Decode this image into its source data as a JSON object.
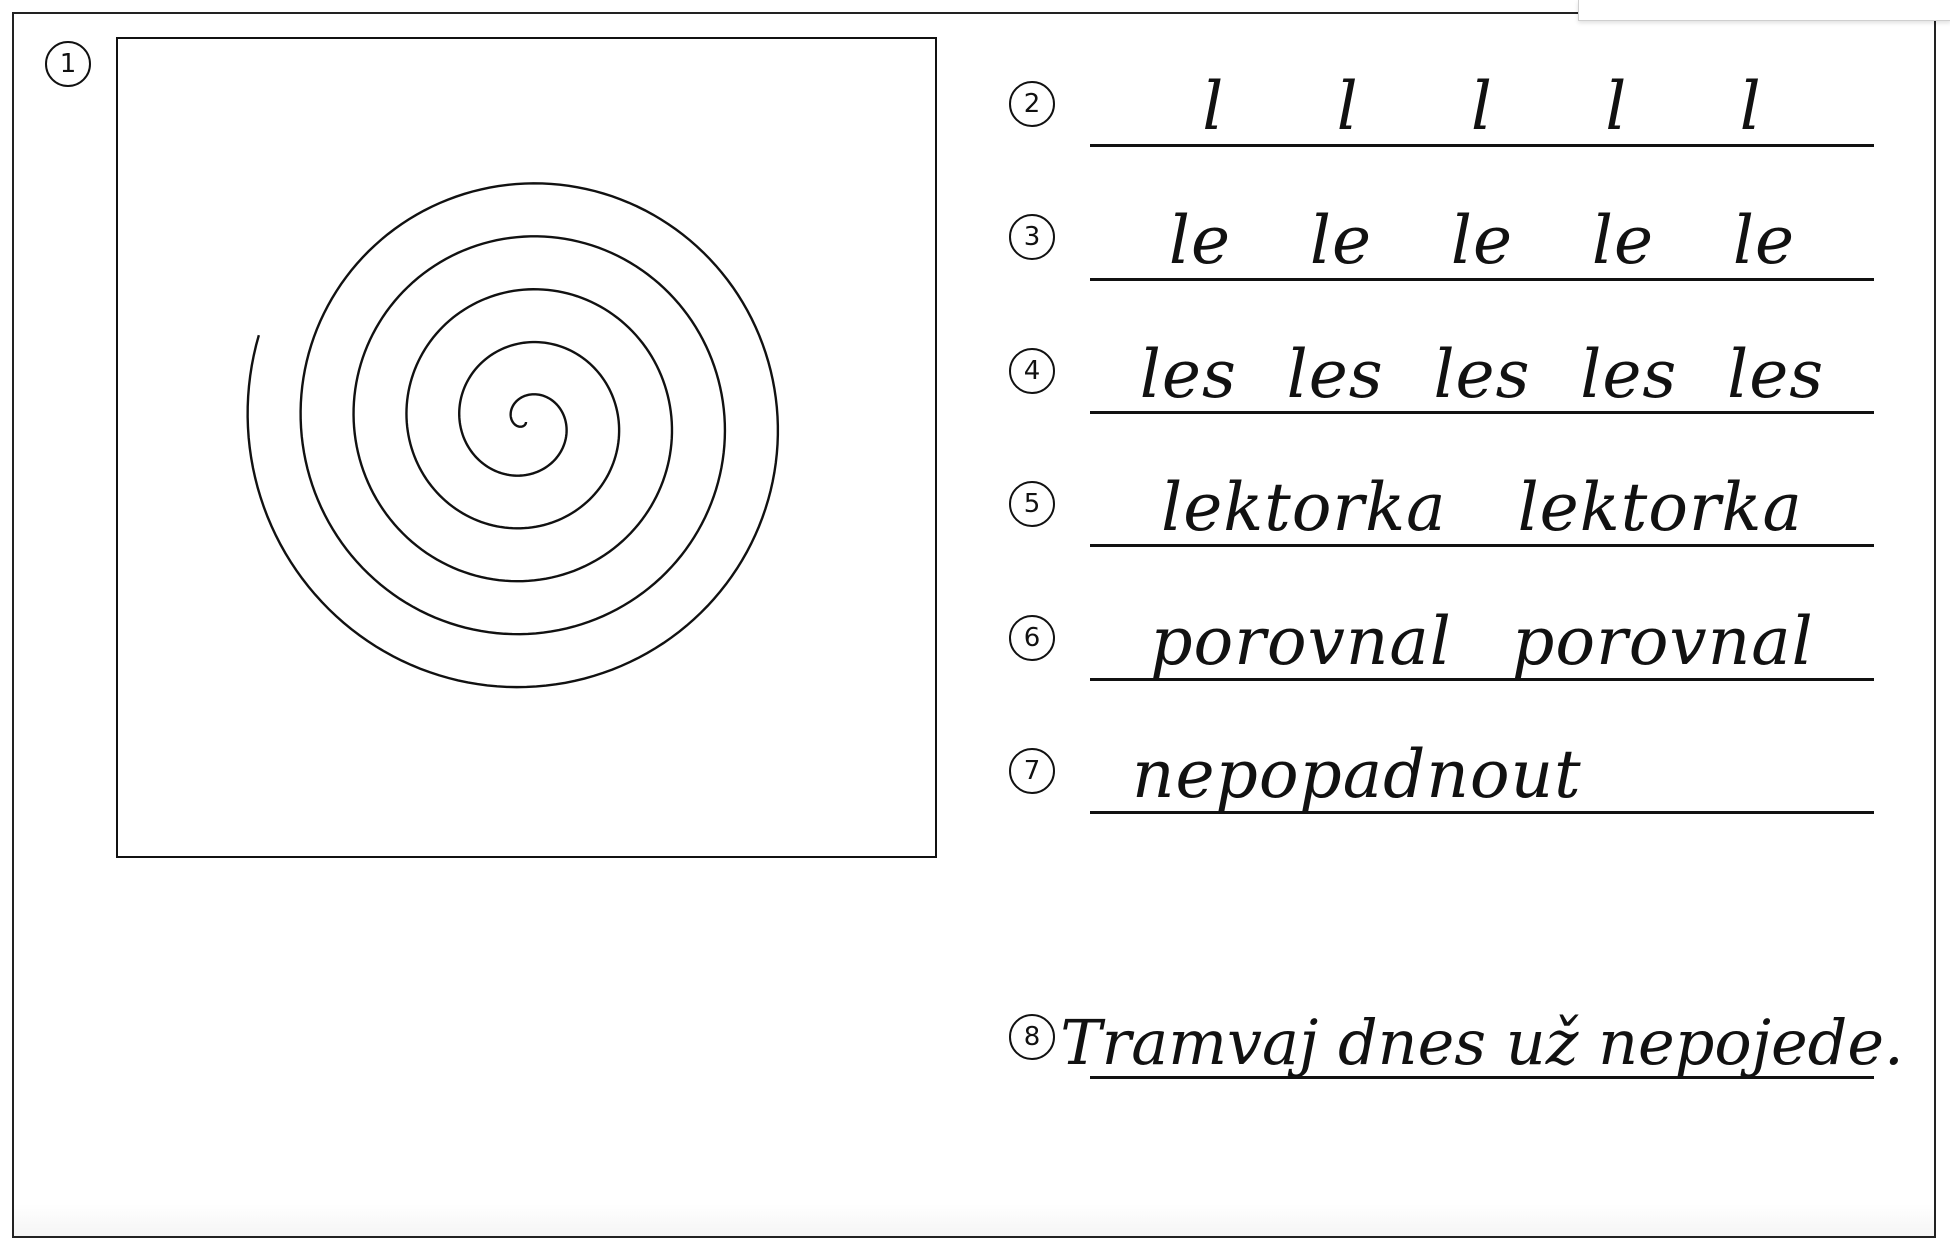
{
  "exercises": [
    {
      "number": "1"
    },
    {
      "number": "2",
      "items": [
        "l",
        "l",
        "l",
        "l",
        "l"
      ]
    },
    {
      "number": "3",
      "items": [
        "le",
        "le",
        "le",
        "le",
        "le"
      ]
    },
    {
      "number": "4",
      "items": [
        "les",
        "les",
        "les",
        "les",
        "les"
      ]
    },
    {
      "number": "5",
      "items": [
        "lektorka",
        "lektorka"
      ]
    },
    {
      "number": "6",
      "items": [
        "porovnal",
        "porovnal"
      ]
    },
    {
      "number": "7",
      "items": [
        "nepopadnout"
      ]
    },
    {
      "number": "8",
      "items": [
        "Tramvaj dnes už nepojede."
      ]
    }
  ]
}
